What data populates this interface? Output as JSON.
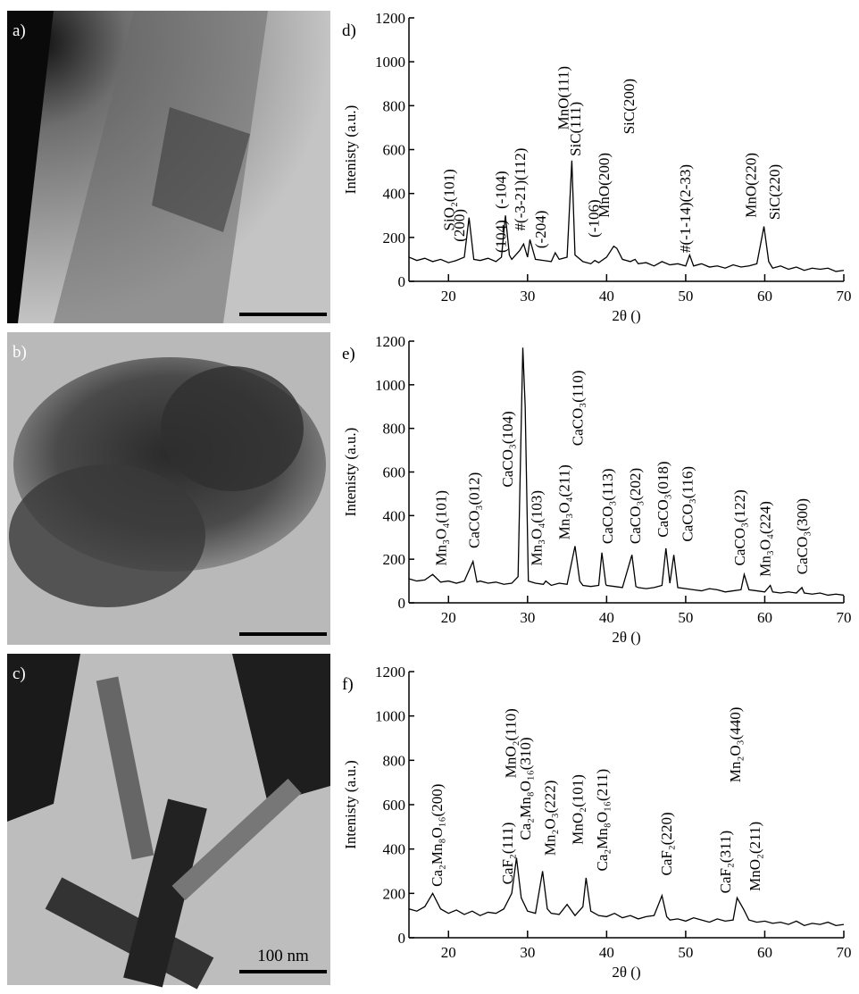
{
  "panels": [
    {
      "label": "a)"
    },
    {
      "label": "b)"
    },
    {
      "label": "c)"
    }
  ],
  "scale_bar_label": "100 nm",
  "chart_data": [
    {
      "type": "line",
      "title": "d)",
      "y_label": "Intenisty (a.u.)",
      "x_label": "2θ ()",
      "color": "#000000",
      "xlim": [
        15,
        70
      ],
      "ylim": [
        0,
        1200
      ],
      "xticks": [
        20,
        30,
        40,
        50,
        60,
        70
      ],
      "yticks": [
        0,
        200,
        400,
        600,
        800,
        1000,
        1200
      ],
      "x": [
        15,
        16,
        17,
        18,
        19,
        20,
        21,
        22,
        22.6,
        23.2,
        24,
        25,
        26,
        26.7,
        27.2,
        27.7,
        28,
        29,
        29.5,
        30,
        30.3,
        31,
        32,
        33,
        33.5,
        34,
        35,
        35.6,
        36,
        37,
        38,
        38.5,
        39,
        40,
        40.9,
        41.3,
        42,
        43,
        43.6,
        44,
        45,
        46,
        47,
        48,
        49,
        50,
        50.5,
        51,
        52,
        53,
        54,
        55,
        56,
        57,
        58,
        59,
        59.9,
        60.5,
        61,
        62,
        63,
        64,
        65,
        66,
        67,
        68,
        69,
        70
      ],
      "values": [
        110,
        95,
        105,
        90,
        100,
        85,
        95,
        110,
        290,
        100,
        95,
        105,
        90,
        110,
        300,
        120,
        100,
        140,
        170,
        110,
        190,
        100,
        95,
        90,
        130,
        100,
        110,
        550,
        120,
        90,
        80,
        95,
        85,
        110,
        160,
        150,
        100,
        90,
        100,
        80,
        85,
        70,
        90,
        75,
        80,
        70,
        120,
        70,
        80,
        65,
        70,
        60,
        75,
        65,
        70,
        80,
        250,
        90,
        60,
        70,
        55,
        65,
        50,
        60,
        55,
        60,
        45,
        50
      ],
      "annotations": [
        {
          "text": "SiO₂(101)",
          "x": 20.0,
          "y": 230
        },
        {
          "text": "(200)",
          "x": 21.3,
          "y": 180
        },
        {
          "text": "(104)",
          "x": 26.6,
          "y": 130
        },
        {
          "text": "(-104)",
          "x": 26.6,
          "y": 330
        },
        {
          "text": "#(-3-21)(112)",
          "x": 29.0,
          "y": 230
        },
        {
          "text": "(-204)",
          "x": 31.6,
          "y": 150
        },
        {
          "text": "MnO(111)",
          "x": 34.5,
          "y": 690
        },
        {
          "text": "SiC(111)",
          "x": 36.0,
          "y": 570
        },
        {
          "text": "(-106)",
          "x": 38.3,
          "y": 200
        },
        {
          "text": "MnO(200)",
          "x": 39.6,
          "y": 290
        },
        {
          "text": "SiC(200)",
          "x": 42.8,
          "y": 670
        },
        {
          "text": "#(-1-14)(2-33)",
          "x": 49.9,
          "y": 130
        },
        {
          "text": "MnO(220)",
          "x": 58.2,
          "y": 290
        },
        {
          "text": "SiC(220)",
          "x": 61.2,
          "y": 280
        }
      ]
    },
    {
      "type": "line",
      "title": "e)",
      "y_label": "Intenisty (a.u.)",
      "x_label": "2θ ()",
      "color": "#000000",
      "xlim": [
        15,
        70
      ],
      "ylim": [
        0,
        1200
      ],
      "xticks": [
        20,
        30,
        40,
        50,
        60,
        70
      ],
      "yticks": [
        0,
        200,
        400,
        600,
        800,
        1000,
        1200
      ],
      "x": [
        15,
        16,
        17,
        18,
        19,
        20,
        21,
        22,
        23.1,
        23.6,
        24,
        25,
        26,
        27,
        28,
        28.8,
        29.4,
        29.7,
        30.1,
        31,
        32,
        32.3,
        33,
        34,
        35,
        36,
        36.6,
        37,
        38,
        39,
        39.4,
        39.9,
        40,
        41,
        42,
        43.2,
        43.7,
        44,
        45,
        46,
        47,
        47.5,
        48,
        48.5,
        49,
        50,
        51,
        52,
        53,
        54,
        55,
        56,
        57,
        57.4,
        58,
        59,
        60,
        60.7,
        61,
        62,
        63,
        64,
        64.7,
        65,
        66,
        67,
        68,
        69,
        70
      ],
      "values": [
        110,
        100,
        105,
        130,
        95,
        100,
        90,
        100,
        190,
        95,
        100,
        90,
        95,
        85,
        90,
        120,
        1170,
        900,
        100,
        90,
        85,
        100,
        80,
        90,
        85,
        260,
        100,
        80,
        75,
        80,
        230,
        85,
        80,
        75,
        70,
        220,
        75,
        70,
        65,
        70,
        80,
        250,
        90,
        220,
        70,
        65,
        60,
        55,
        65,
        60,
        50,
        55,
        60,
        130,
        60,
        55,
        50,
        80,
        50,
        45,
        50,
        45,
        70,
        45,
        40,
        45,
        35,
        40,
        35
      ],
      "annotations": [
        {
          "text": "Mn₃O₄(101)",
          "x": 19.0,
          "y": 170
        },
        {
          "text": "CaCO₃(012)",
          "x": 23.2,
          "y": 250
        },
        {
          "text": "CaCO₃(104)",
          "x": 27.4,
          "y": 530
        },
        {
          "text": "Mn₃O₄(103)",
          "x": 31.1,
          "y": 170
        },
        {
          "text": "Mn₃O₄(211)",
          "x": 34.6,
          "y": 290
        },
        {
          "text": "CaCO₃(110)",
          "x": 36.3,
          "y": 720
        },
        {
          "text": "CaCO₃(113)",
          "x": 40.1,
          "y": 270
        },
        {
          "text": "CaCO₃(202)",
          "x": 43.6,
          "y": 270
        },
        {
          "text": "CaCO₃(018)",
          "x": 47.1,
          "y": 300
        },
        {
          "text": "CaCO₃(116)",
          "x": 50.2,
          "y": 280
        },
        {
          "text": "CaCO₃(122)",
          "x": 56.8,
          "y": 170
        },
        {
          "text": "Mn₃O₄(224)",
          "x": 60.0,
          "y": 120
        },
        {
          "text": "CaCO₃(300)",
          "x": 64.7,
          "y": 130
        }
      ]
    },
    {
      "type": "line",
      "title": "f)",
      "y_label": "Intenisty (a.u.)",
      "x_label": "2θ ()",
      "color": "#000000",
      "xlim": [
        15,
        70
      ],
      "ylim": [
        0,
        1200
      ],
      "xticks": [
        20,
        30,
        40,
        50,
        60,
        70
      ],
      "yticks": [
        0,
        200,
        400,
        600,
        800,
        1000,
        1200
      ],
      "x": [
        15,
        16,
        17,
        18,
        19,
        20,
        21,
        22,
        23,
        24,
        25,
        26,
        27,
        28,
        28.6,
        29.2,
        30,
        31,
        31.9,
        32.5,
        33,
        34,
        35,
        36,
        37,
        37.4,
        38,
        39,
        40,
        41,
        42,
        43,
        44,
        45,
        46,
        47,
        47.6,
        48,
        49,
        50,
        51,
        52,
        53,
        54,
        55,
        56,
        56.5,
        57.3,
        58,
        59,
        60,
        61,
        62,
        63,
        64,
        65,
        66,
        67,
        68,
        69,
        70
      ],
      "values": [
        130,
        120,
        140,
        200,
        130,
        110,
        125,
        105,
        120,
        100,
        115,
        110,
        130,
        200,
        360,
        180,
        120,
        110,
        300,
        130,
        110,
        105,
        150,
        100,
        140,
        270,
        120,
        100,
        95,
        110,
        90,
        100,
        85,
        95,
        100,
        190,
        95,
        80,
        85,
        75,
        90,
        80,
        70,
        85,
        75,
        80,
        180,
        130,
        80,
        70,
        75,
        65,
        70,
        60,
        75,
        55,
        65,
        60,
        70,
        55,
        60
      ],
      "annotations": [
        {
          "text": "Ca₂Mn₈O₁₆(200)",
          "x": 18.5,
          "y": 230
        },
        {
          "text": "CaF₂(111)",
          "x": 27.4,
          "y": 240
        },
        {
          "text": "MnO₂(110)",
          "x": 27.8,
          "y": 720
        },
        {
          "text": "Ca₂Mn₈O₁₆(310)",
          "x": 29.7,
          "y": 440
        },
        {
          "text": "Mn₂O₃(222)",
          "x": 32.8,
          "y": 370
        },
        {
          "text": "MnO₂(101)",
          "x": 36.3,
          "y": 420
        },
        {
          "text": "Ca₂Mn₈O₁₆(211)",
          "x": 39.4,
          "y": 300
        },
        {
          "text": "CaF₂(220)",
          "x": 47.5,
          "y": 280
        },
        {
          "text": "CaF₂(311)",
          "x": 55.0,
          "y": 200
        },
        {
          "text": "Mn₂O₃(440)",
          "x": 56.2,
          "y": 700
        },
        {
          "text": "MnO₂(211)",
          "x": 58.7,
          "y": 210
        }
      ]
    }
  ]
}
